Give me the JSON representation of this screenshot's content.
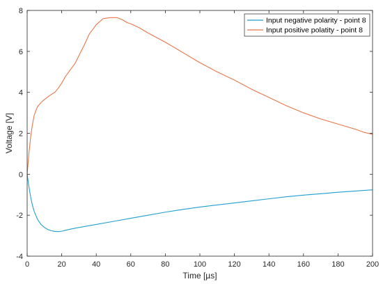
{
  "chart_data": {
    "type": "line",
    "xlabel": "Time [µs]",
    "ylabel": "Voltage [V]",
    "xlim": [
      0,
      200
    ],
    "ylim": [
      -4,
      8
    ],
    "x_ticks": [
      0,
      20,
      40,
      60,
      80,
      100,
      120,
      140,
      160,
      180,
      200
    ],
    "y_ticks": [
      -4,
      -2,
      0,
      2,
      4,
      6,
      8
    ],
    "grid": false,
    "legend_position": "top-right",
    "series": [
      {
        "name": "Input negative polarity - point 8",
        "color": "#1f9fd0",
        "x": [
          0,
          1,
          2,
          3,
          4,
          5,
          6,
          8,
          10,
          12,
          14,
          16,
          18,
          20,
          22,
          25,
          30,
          40,
          50,
          60,
          70,
          80,
          90,
          100,
          110,
          120,
          130,
          140,
          150,
          160,
          170,
          180,
          190,
          200
        ],
        "values": [
          0,
          -0.6,
          -1.1,
          -1.5,
          -1.8,
          -2.0,
          -2.2,
          -2.45,
          -2.6,
          -2.7,
          -2.76,
          -2.79,
          -2.8,
          -2.78,
          -2.74,
          -2.68,
          -2.6,
          -2.45,
          -2.3,
          -2.15,
          -2.0,
          -1.85,
          -1.72,
          -1.6,
          -1.5,
          -1.4,
          -1.3,
          -1.2,
          -1.1,
          -1.02,
          -0.95,
          -0.88,
          -0.82,
          -0.76
        ]
      },
      {
        "name": "Input positive polatity - point 8",
        "color": "#e8764a",
        "x": [
          0,
          1,
          2,
          3,
          4,
          5,
          6,
          8,
          10,
          12,
          14,
          16,
          18,
          20,
          22,
          25,
          28,
          30,
          33,
          36,
          40,
          44,
          48,
          52,
          55,
          58,
          60,
          65,
          70,
          80,
          90,
          100,
          110,
          120,
          130,
          140,
          150,
          160,
          170,
          180,
          190,
          195,
          200
        ],
        "values": [
          0,
          1.0,
          1.8,
          2.4,
          2.85,
          3.1,
          3.3,
          3.5,
          3.65,
          3.78,
          3.9,
          4.0,
          4.2,
          4.45,
          4.75,
          5.1,
          5.45,
          5.8,
          6.3,
          6.85,
          7.3,
          7.6,
          7.65,
          7.65,
          7.55,
          7.4,
          7.35,
          7.15,
          6.9,
          6.45,
          5.95,
          5.45,
          5.0,
          4.6,
          4.15,
          3.75,
          3.35,
          3.0,
          2.7,
          2.45,
          2.2,
          2.05,
          1.95
        ]
      }
    ]
  }
}
